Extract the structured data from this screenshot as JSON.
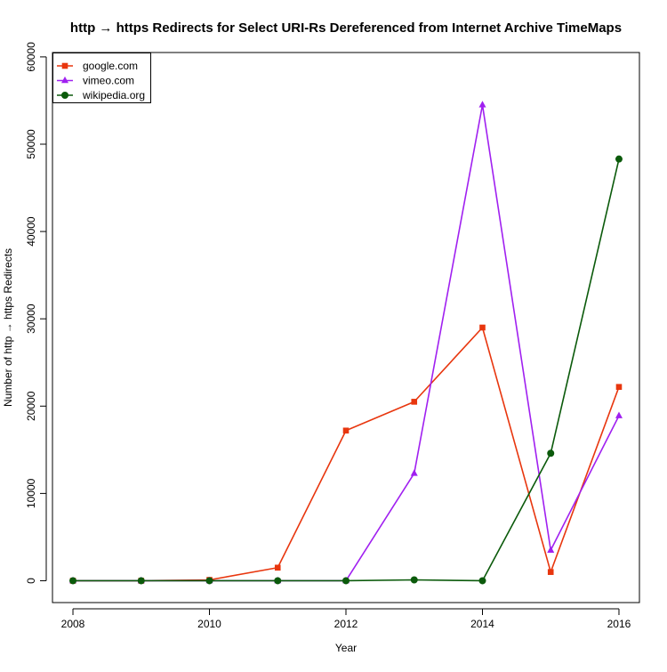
{
  "chart_data": {
    "type": "line",
    "title": "http → https Redirects for Select URI-Rs Dereferenced from Internet Archive TimeMaps",
    "xlabel": "Year",
    "ylabel": "Number of http → https Redirects",
    "x": [
      2008,
      2009,
      2010,
      2011,
      2012,
      2013,
      2014,
      2015,
      2016
    ],
    "xlim": [
      2007.7,
      2016.3
    ],
    "ylim": [
      -2500,
      60500
    ],
    "x_ticks": [
      2008,
      2010,
      2012,
      2014,
      2016
    ],
    "y_ticks": [
      0,
      10000,
      20000,
      30000,
      40000,
      50000,
      60000
    ],
    "grid": false,
    "legend_position": "top-left",
    "series": [
      {
        "name": "google.com",
        "color": "#e8360e",
        "marker": "square",
        "values": [
          0,
          0,
          100,
          1500,
          17200,
          20500,
          29000,
          1000,
          22200
        ]
      },
      {
        "name": "vimeo.com",
        "color": "#a020f0",
        "marker": "triangle",
        "values": [
          0,
          0,
          0,
          0,
          0,
          12300,
          54500,
          3500,
          18900
        ]
      },
      {
        "name": "wikipedia.org",
        "color": "#0b5a0b",
        "marker": "circle",
        "values": [
          0,
          0,
          0,
          0,
          0,
          100,
          0,
          14600,
          48300
        ]
      }
    ]
  }
}
